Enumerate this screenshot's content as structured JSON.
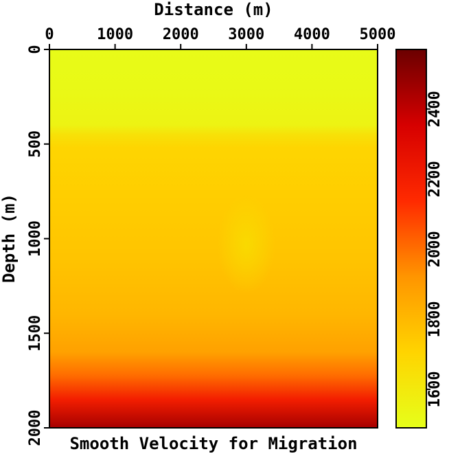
{
  "chart_data": {
    "type": "heatmap",
    "title": "Smooth Velocity for Migration",
    "xlabel": "Distance (m)",
    "ylabel": "Depth (m)",
    "xlim": [
      0,
      5000
    ],
    "ylim": [
      0,
      2000
    ],
    "x_ticks": [
      {
        "value": 0,
        "label": "0"
      },
      {
        "value": 1000,
        "label": "1000"
      },
      {
        "value": 2000,
        "label": "2000"
      },
      {
        "value": 3000,
        "label": "3000"
      },
      {
        "value": 4000,
        "label": "4000"
      },
      {
        "value": 5000,
        "label": "5000"
      }
    ],
    "y_ticks": [
      {
        "value": 0,
        "label": "0"
      },
      {
        "value": 500,
        "label": "500"
      },
      {
        "value": 1000,
        "label": "1000"
      },
      {
        "value": 1500,
        "label": "1500"
      },
      {
        "value": 2000,
        "label": "2000"
      }
    ],
    "colorbar": {
      "range": [
        1490,
        2570
      ],
      "ticks": [
        {
          "value": 1600,
          "label": "1600"
        },
        {
          "value": 1800,
          "label": "1800"
        },
        {
          "value": 2000,
          "label": "2000"
        },
        {
          "value": 2200,
          "label": "2200"
        },
        {
          "value": 2400,
          "label": "2400"
        }
      ],
      "colormap": [
        "#e6ff1a",
        "#ffd400",
        "#ff9500",
        "#ff2a00",
        "#d60000",
        "#6b0000"
      ]
    },
    "depth_profile": {
      "depth": [
        0,
        200,
        400,
        450,
        520,
        800,
        1100,
        1400,
        1600,
        1720,
        1850,
        2000
      ],
      "velocity": [
        1510,
        1520,
        1550,
        1640,
        1700,
        1730,
        1760,
        1810,
        1880,
        2000,
        2200,
        2450
      ]
    },
    "anomaly": {
      "x": 3000,
      "depth": 1030,
      "velocity_delta": -60
    }
  }
}
